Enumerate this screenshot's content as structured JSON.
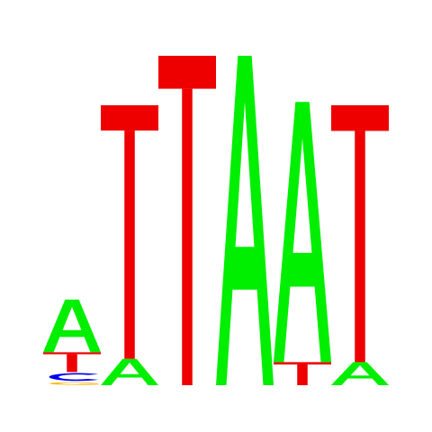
{
  "colors": {
    "A": "#00ee00",
    "T": "#ee0000",
    "C": "#0000ee",
    "G": "#ffb300"
  },
  "columns": [
    {
      "position": 1,
      "letters": [
        {
          "base": "G",
          "height": 0.01
        },
        {
          "base": "C",
          "height": 0.03
        },
        {
          "base": "T",
          "height": 0.06
        },
        {
          "base": "A",
          "height": 0.16
        }
      ]
    },
    {
      "position": 2,
      "letters": [
        {
          "base": "A",
          "height": 0.08
        },
        {
          "base": "T",
          "height": 0.77
        }
      ]
    },
    {
      "position": 3,
      "letters": [
        {
          "base": "T",
          "height": 1.0
        }
      ]
    },
    {
      "position": 4,
      "letters": [
        {
          "base": "A",
          "height": 1.0
        }
      ]
    },
    {
      "position": 5,
      "letters": [
        {
          "base": "T",
          "height": 0.07
        },
        {
          "base": "A",
          "height": 0.79
        }
      ]
    },
    {
      "position": 6,
      "letters": [
        {
          "base": "A",
          "height": 0.07
        },
        {
          "base": "T",
          "height": 0.78
        }
      ]
    }
  ],
  "scale_max_bits": 2
}
